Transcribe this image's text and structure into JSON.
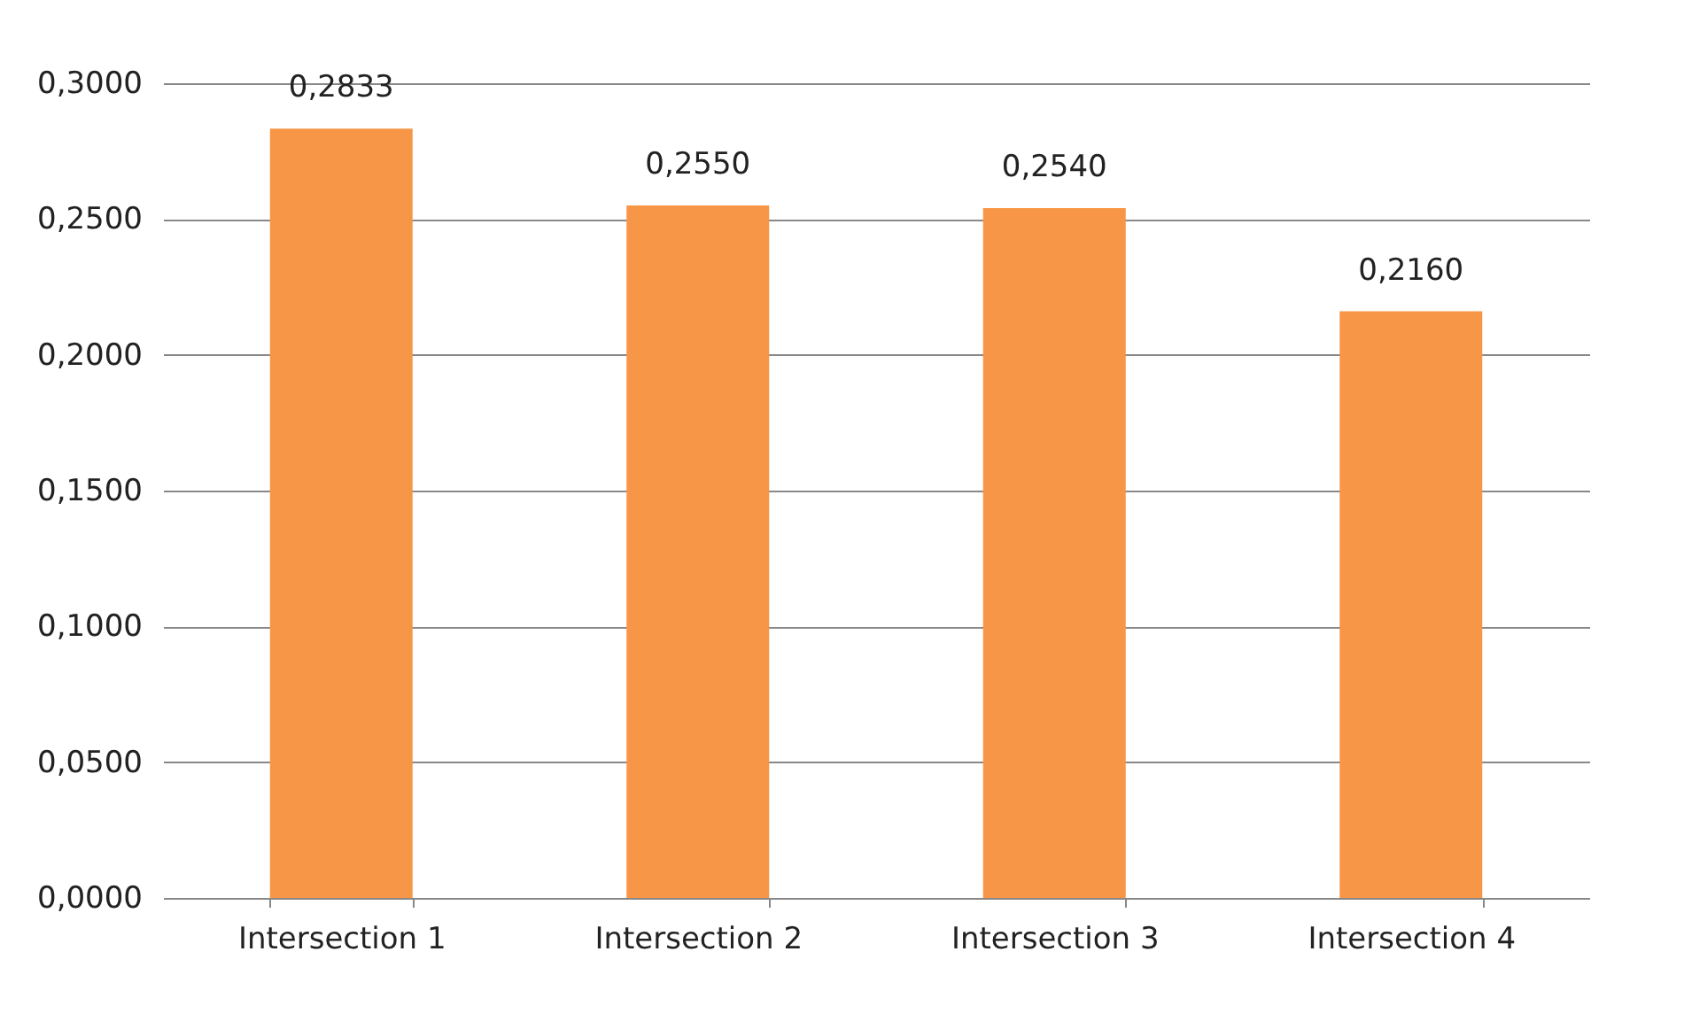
{
  "chart_data": {
    "type": "bar",
    "categories": [
      "Intersection 1",
      "Intersection 2",
      "Intersection 3",
      "Intersection 4"
    ],
    "values": [
      0.2833,
      0.255,
      0.254,
      0.216
    ],
    "value_labels": [
      "0,2833",
      "0,2550",
      "0,2540",
      "0,2160"
    ],
    "color": "#f79646",
    "ylim": [
      0,
      0.3
    ],
    "yticks": [
      {
        "value": 0,
        "label": "0,0000"
      },
      {
        "value": 0.05,
        "label": "0,0500"
      },
      {
        "value": 0.1,
        "label": "0,1000"
      },
      {
        "value": 0.15,
        "label": "0,1500"
      },
      {
        "value": 0.2,
        "label": "0,2000"
      },
      {
        "value": 0.25,
        "label": "0,2500"
      },
      {
        "value": 0.3,
        "label": "0,3000"
      }
    ],
    "grid": "y"
  }
}
